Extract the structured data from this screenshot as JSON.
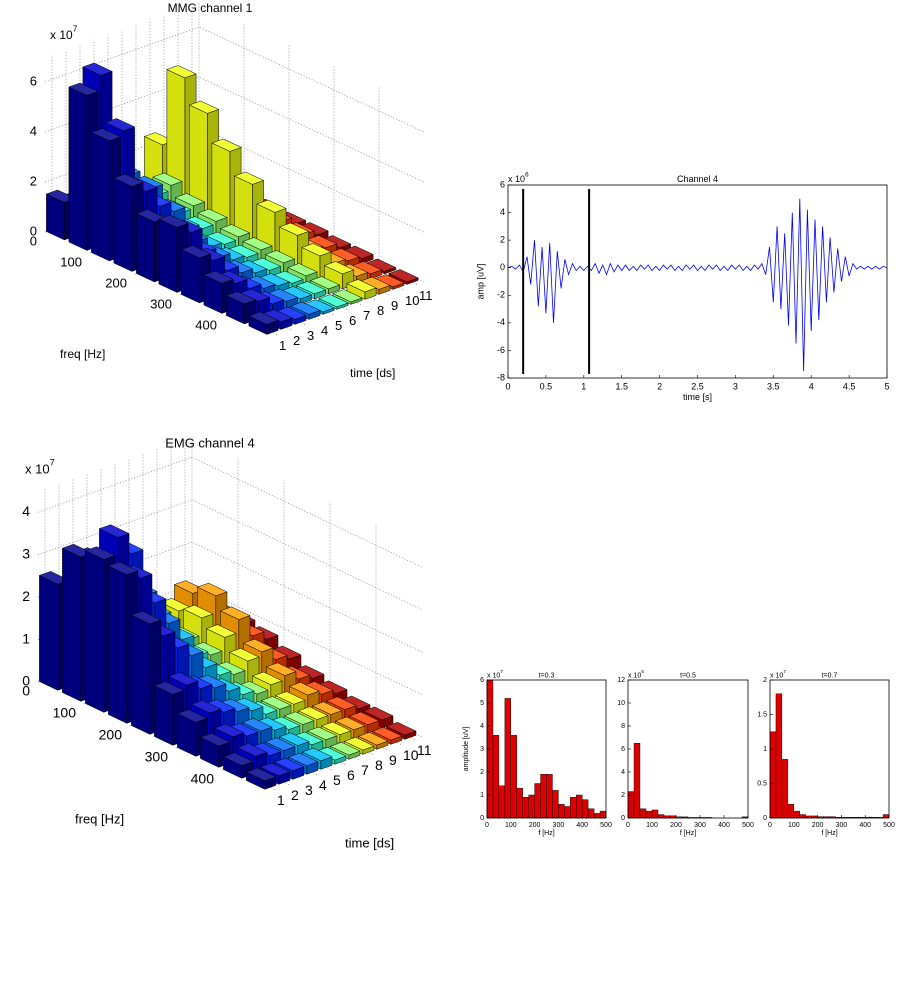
{
  "chart_data": [
    {
      "type": "bar3d",
      "title": "MMG channel 1",
      "scale_label": "x 10",
      "scale_exponent": "7",
      "x_label": "freq [Hz]",
      "y_label": "time [ds]",
      "x": [
        0,
        50,
        100,
        150,
        200,
        250,
        300,
        350,
        400,
        450
      ],
      "xlim": [
        0,
        500
      ],
      "xticks": [
        0,
        100,
        200,
        300,
        400
      ],
      "ylim": [
        0.5,
        11.5
      ],
      "yticks": [
        1,
        2,
        3,
        4,
        5,
        6,
        7,
        8,
        9,
        10,
        11
      ],
      "zlim": [
        0,
        7
      ],
      "zticks": [
        0,
        2,
        4,
        6
      ],
      "grid": true,
      "series": [
        {
          "color": "#00008f",
          "values": [
            1.5,
            6.2,
            4.8,
            3.4,
            2.4,
            2.6,
            1.8,
            1.2,
            0.8,
            0.4
          ]
        },
        {
          "color": "#0000d0",
          "values": [
            1.2,
            6.8,
            5.0,
            3.0,
            2.0,
            2.2,
            1.5,
            1.0,
            0.7,
            0.3
          ]
        },
        {
          "color": "#0020ff",
          "values": [
            0.8,
            2.6,
            2.5,
            2.2,
            1.4,
            1.2,
            0.9,
            0.6,
            0.4,
            0.2
          ]
        },
        {
          "color": "#0070ff",
          "values": [
            0.5,
            2.4,
            2.3,
            1.8,
            1.0,
            0.8,
            0.6,
            0.4,
            0.3,
            0.2
          ]
        },
        {
          "color": "#00c0ff",
          "values": [
            0.4,
            1.6,
            1.2,
            0.9,
            0.6,
            0.5,
            0.4,
            0.3,
            0.2,
            0.1
          ]
        },
        {
          "color": "#30ffd0",
          "values": [
            0.4,
            1.2,
            0.9,
            0.7,
            0.5,
            0.4,
            0.3,
            0.2,
            0.2,
            0.1
          ]
        },
        {
          "color": "#90ff70",
          "values": [
            0.5,
            1.4,
            1.0,
            0.8,
            0.6,
            0.5,
            0.4,
            0.3,
            0.2,
            0.1
          ]
        },
        {
          "color": "#f0ff10",
          "values": [
            2.4,
            5.5,
            4.5,
            3.4,
            2.5,
            1.8,
            1.3,
            0.9,
            0.6,
            0.3
          ]
        },
        {
          "color": "#ffa000",
          "values": [
            0.8,
            1.8,
            1.5,
            1.2,
            0.9,
            0.7,
            0.5,
            0.4,
            0.3,
            0.2
          ]
        },
        {
          "color": "#ff4000",
          "values": [
            0.4,
            0.9,
            0.8,
            0.7,
            0.6,
            0.5,
            0.4,
            0.3,
            0.2,
            0.1
          ]
        },
        {
          "color": "#b00000",
          "values": [
            0.3,
            0.6,
            0.5,
            0.4,
            0.3,
            0.3,
            0.2,
            0.2,
            0.1,
            0.1
          ]
        }
      ]
    },
    {
      "type": "line",
      "title": "Channel 4",
      "scale_label": "x 10",
      "scale_exponent": "6",
      "x_label": "time [s]",
      "y_label": "amp [uV]",
      "color": "#0000ff",
      "xlim": [
        0,
        5
      ],
      "xticks": [
        0,
        0.5,
        1,
        1.5,
        2,
        2.5,
        3,
        3.5,
        4,
        4.5,
        5
      ],
      "ylim": [
        -8,
        6
      ],
      "yticks": [
        -8,
        -6,
        -4,
        -2,
        0,
        2,
        4,
        6
      ],
      "vlines": [
        0.2,
        1.07
      ],
      "x": [
        0,
        0.05,
        0.1,
        0.15,
        0.2,
        0.25,
        0.3,
        0.35,
        0.4,
        0.45,
        0.5,
        0.55,
        0.6,
        0.65,
        0.7,
        0.75,
        0.8,
        0.85,
        0.9,
        0.95,
        1,
        1.05,
        1.1,
        1.15,
        1.2,
        1.25,
        1.3,
        1.35,
        1.4,
        1.45,
        1.5,
        1.55,
        1.6,
        1.65,
        1.7,
        1.75,
        1.8,
        1.85,
        1.9,
        1.95,
        2,
        2.05,
        2.1,
        2.15,
        2.2,
        2.25,
        2.3,
        2.35,
        2.4,
        2.45,
        2.5,
        2.55,
        2.6,
        2.65,
        2.7,
        2.75,
        2.8,
        2.85,
        2.9,
        2.95,
        3,
        3.05,
        3.1,
        3.15,
        3.2,
        3.25,
        3.3,
        3.35,
        3.4,
        3.45,
        3.5,
        3.55,
        3.6,
        3.65,
        3.7,
        3.75,
        3.8,
        3.85,
        3.9,
        3.95,
        4,
        4.05,
        4.1,
        4.15,
        4.2,
        4.25,
        4.3,
        4.35,
        4.4,
        4.45,
        4.5,
        4.55,
        4.6,
        4.65,
        4.7,
        4.75,
        4.8,
        4.85,
        4.9,
        4.95,
        5
      ],
      "values": [
        0,
        0.1,
        -0.1,
        0.2,
        -0.3,
        0.8,
        -1.2,
        2.0,
        -2.8,
        1.5,
        -3.3,
        1.8,
        -4.0,
        1.2,
        -1.5,
        0.6,
        -0.5,
        0.3,
        -0.2,
        0.1,
        -0.2,
        0.1,
        -0.2,
        0.3,
        -0.4,
        0.2,
        -0.5,
        0.3,
        -0.3,
        0.2,
        -0.2,
        0.2,
        -0.2,
        0.1,
        -0.2,
        0.2,
        -0.1,
        0.2,
        -0.2,
        0.1,
        -0.2,
        0.2,
        -0.1,
        0.2,
        -0.2,
        0.1,
        -0.2,
        0.2,
        -0.1,
        0.2,
        -0.2,
        0.1,
        -0.2,
        0.2,
        -0.1,
        0.2,
        -0.2,
        0.1,
        -0.2,
        0.2,
        -0.1,
        0.2,
        -0.2,
        0.1,
        -0.2,
        0.2,
        -0.1,
        0.3,
        -0.5,
        1.5,
        -2.5,
        3.0,
        -3.0,
        2.5,
        -4.2,
        4.0,
        -5.5,
        5.0,
        -7.5,
        4.2,
        -4.6,
        3.5,
        -3.8,
        3.0,
        -2.5,
        2.2,
        -1.8,
        1.4,
        -1.0,
        0.8,
        -0.6,
        0.3,
        -0.1,
        0.1,
        -0.1,
        0.1,
        -0.1,
        0.1,
        -0.1,
        0.1,
        0
      ]
    },
    {
      "type": "bar3d",
      "title": "EMG channel 4",
      "scale_label": "x 10",
      "scale_exponent": "7",
      "x_label": "freq [Hz]",
      "y_label": "time [ds]",
      "x": [
        0,
        50,
        100,
        150,
        200,
        250,
        300,
        350,
        400,
        450
      ],
      "xlim": [
        0,
        500
      ],
      "xticks": [
        0,
        100,
        200,
        300,
        400
      ],
      "ylim": [
        0.5,
        11.5
      ],
      "yticks": [
        1,
        2,
        3,
        4,
        5,
        6,
        7,
        8,
        9,
        10,
        11
      ],
      "zlim": [
        0,
        4.5
      ],
      "zticks": [
        0,
        1,
        2,
        3,
        4
      ],
      "grid": true,
      "series": [
        {
          "color": "#00008f",
          "values": [
            2.5,
            3.4,
            3.6,
            3.5,
            2.6,
            1.2,
            0.8,
            0.5,
            0.3,
            0.2
          ]
        },
        {
          "color": "#0000d0",
          "values": [
            1.5,
            3.2,
            4.0,
            3.3,
            2.2,
            1.3,
            0.9,
            0.6,
            0.4,
            0.2
          ]
        },
        {
          "color": "#0020ff",
          "values": [
            1.2,
            2.8,
            3.5,
            2.6,
            1.8,
            1.1,
            0.8,
            0.5,
            0.3,
            0.2
          ]
        },
        {
          "color": "#0070ff",
          "values": [
            0.8,
            2.0,
            2.4,
            2.0,
            1.5,
            1.0,
            0.7,
            0.5,
            0.3,
            0.2
          ]
        },
        {
          "color": "#00c0ff",
          "values": [
            0.6,
            1.6,
            1.8,
            1.5,
            1.1,
            0.8,
            0.6,
            0.4,
            0.3,
            0.2
          ]
        },
        {
          "color": "#30ffd0",
          "values": [
            0.4,
            1.0,
            1.1,
            1.0,
            0.8,
            0.6,
            0.4,
            0.3,
            0.2,
            0.1
          ]
        },
        {
          "color": "#90ff70",
          "values": [
            0.4,
            0.9,
            1.0,
            0.9,
            0.7,
            0.5,
            0.4,
            0.3,
            0.2,
            0.1
          ]
        },
        {
          "color": "#f0ff10",
          "values": [
            0.6,
            1.3,
            1.4,
            1.2,
            0.9,
            0.6,
            0.4,
            0.3,
            0.2,
            0.1
          ]
        },
        {
          "color": "#ffa000",
          "values": [
            0.8,
            1.6,
            1.8,
            1.5,
            1.0,
            0.7,
            0.5,
            0.3,
            0.2,
            0.1
          ]
        },
        {
          "color": "#ff4000",
          "values": [
            0.5,
            1.1,
            1.2,
            1.0,
            0.7,
            0.5,
            0.4,
            0.3,
            0.2,
            0.1
          ]
        },
        {
          "color": "#b00000",
          "values": [
            0.4,
            0.8,
            0.9,
            0.8,
            0.6,
            0.4,
            0.3,
            0.2,
            0.2,
            0.1
          ]
        }
      ]
    },
    {
      "type": "histogram",
      "title": "t=0.3",
      "scale_label": "x 10",
      "scale_exponent": "7",
      "x_label": "f [Hz]",
      "y_label": "amplitude [uV]",
      "color": "#dd0000",
      "bins": [
        0,
        25,
        50,
        75,
        100,
        125,
        150,
        175,
        200,
        225,
        250,
        275,
        300,
        325,
        350,
        375,
        400,
        425,
        450,
        475,
        500
      ],
      "values": [
        6.0,
        3.6,
        1.4,
        5.2,
        3.6,
        1.3,
        0.9,
        1.0,
        1.5,
        1.9,
        1.9,
        1.2,
        0.6,
        0.5,
        0.9,
        1.0,
        0.8,
        0.4,
        0.2,
        0.3
      ],
      "xlim": [
        0,
        500
      ],
      "xticks": [
        0,
        100,
        200,
        300,
        400,
        500
      ],
      "ylim": [
        0,
        6
      ],
      "yticks": [
        0,
        1,
        2,
        3,
        4,
        5,
        6
      ]
    },
    {
      "type": "histogram",
      "title": "t=0.5",
      "scale_label": "x 10",
      "scale_exponent": "6",
      "x_label": "f [Hz]",
      "color": "#dd0000",
      "bins": [
        0,
        25,
        50,
        75,
        100,
        125,
        150,
        175,
        200,
        225,
        250,
        275,
        300,
        325,
        350,
        375,
        400,
        425,
        450,
        475,
        500
      ],
      "values": [
        2.3,
        6.5,
        0.8,
        0.6,
        0.7,
        0.3,
        0.2,
        0.2,
        0.1,
        0.1,
        0.05,
        0.05,
        0.05,
        0.05,
        0,
        0,
        0,
        0,
        0,
        0.1
      ],
      "xlim": [
        0,
        500
      ],
      "xticks": [
        0,
        100,
        200,
        300,
        400,
        500
      ],
      "ylim": [
        0,
        12
      ],
      "yticks": [
        0,
        2,
        4,
        6,
        8,
        10,
        12
      ]
    },
    {
      "type": "histogram",
      "title": "t=0.7",
      "scale_label": "x 10",
      "scale_exponent": "7",
      "x_label": "f [Hz]",
      "color": "#dd0000",
      "bins": [
        0,
        25,
        50,
        75,
        100,
        125,
        150,
        175,
        200,
        225,
        250,
        275,
        300,
        325,
        350,
        375,
        400,
        425,
        450,
        475,
        500
      ],
      "values": [
        1.25,
        1.8,
        0.85,
        0.2,
        0.1,
        0.05,
        0.03,
        0.03,
        0.02,
        0.02,
        0.02,
        0.01,
        0.01,
        0.01,
        0.01,
        0.01,
        0.01,
        0.01,
        0.01,
        0.05
      ],
      "xlim": [
        0,
        500
      ],
      "xticks": [
        0,
        100,
        200,
        300,
        400,
        500
      ],
      "ylim": [
        0,
        2
      ],
      "yticks": [
        0,
        0.5,
        1,
        1.5,
        2
      ]
    }
  ]
}
